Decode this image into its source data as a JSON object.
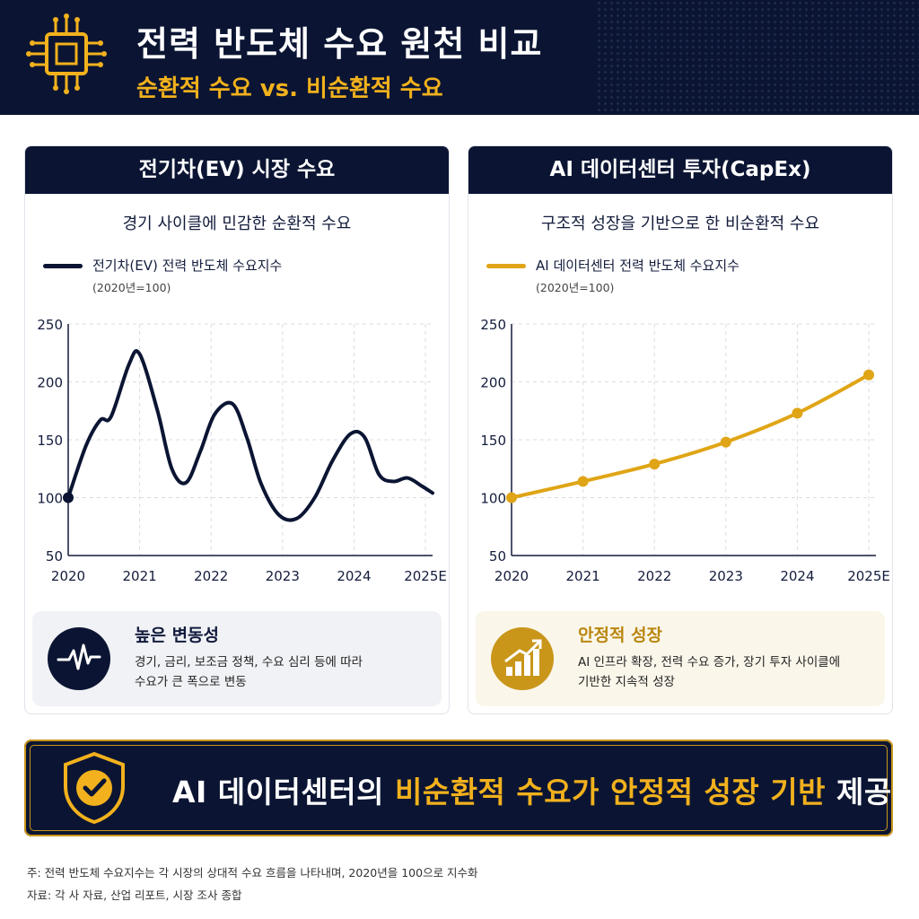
{
  "header": {
    "title": "전력 반도체 수요 원천 비교",
    "subtitle": "순환적 수요 vs. 비순환적 수요"
  },
  "colors": {
    "navy": "#0b1533",
    "gold": "#f2b11d",
    "line_gold": "#e0a516"
  },
  "left_panel": {
    "title": "전기차(EV) 시장 수요",
    "subtitle": "경기 사이클에 민감한 순환적 수요",
    "legend_label": "전기차(EV) 전력 반도체 수요지수",
    "legend_note": "(2020년=100)",
    "box_title": "높은 변동성",
    "box_desc_1": "경기, 금리, 보조금 정책, 수요 심리 등에 따라",
    "box_desc_2": "수요가 큰 폭으로 변동",
    "box_icon": "pulse-icon"
  },
  "right_panel": {
    "title": "AI 데이터센터 투자(CapEx)",
    "subtitle": "구조적 성장을 기반으로 한 비순환적 수요",
    "legend_label": "AI 데이터센터 전력 반도체 수요지수",
    "legend_note": "(2020년=100)",
    "box_title": "안정적 성장",
    "box_desc_1": "AI 인프라 확장, 전력 수요 증가, 장기 투자 사이클에",
    "box_desc_2": "기반한 지속적 성장",
    "box_icon": "growth-chart-icon"
  },
  "banner": {
    "part1": "AI 데이터센터의 ",
    "part2": "비순환적 수요가",
    "part3": " ",
    "part4": "안정적 성장 기반",
    "part5": " 제공",
    "icon": "shield-check-icon"
  },
  "footnotes": {
    "line1": "주: 전력 반도체 수요지수는 각 시장의 상대적 수요 흐름을 나타내며, 2020년을 100으로 지수화",
    "line2": "자료: 각 사 자료, 산업 리포트, 시장 조사 종합"
  },
  "chart_data": [
    {
      "type": "line",
      "ylim": [
        50,
        250
      ],
      "xlim": [
        2020,
        2025.1
      ],
      "yticks": [
        50,
        100,
        150,
        200,
        250
      ],
      "xticks": [
        "2020",
        "2021",
        "2022",
        "2023",
        "2024",
        "2025E"
      ],
      "grid": true,
      "legend_position": "top-left",
      "series": [
        {
          "name": "전기차(EV) 전력 반도체 수요지수",
          "color": "#0b1533",
          "x": [
            2020.0,
            2020.25,
            2020.45,
            2020.6,
            2020.85,
            2021.0,
            2021.25,
            2021.45,
            2021.65,
            2021.85,
            2022.05,
            2022.3,
            2022.5,
            2022.7,
            2022.95,
            2023.2,
            2023.45,
            2023.7,
            2023.95,
            2024.15,
            2024.35,
            2024.55,
            2024.75,
            2024.95,
            2025.1
          ],
          "y": [
            100,
            145,
            167,
            170,
            215,
            224,
            175,
            125,
            113,
            140,
            172,
            181,
            152,
            112,
            85,
            82,
            100,
            132,
            155,
            152,
            120,
            114,
            117,
            110,
            104
          ]
        }
      ]
    },
    {
      "type": "line",
      "ylim": [
        50,
        250
      ],
      "xlim": [
        2020,
        2025.1
      ],
      "yticks": [
        50,
        100,
        150,
        200,
        250
      ],
      "xticks": [
        "2020",
        "2021",
        "2022",
        "2023",
        "2024",
        "2025E"
      ],
      "grid": true,
      "legend_position": "top-left",
      "series": [
        {
          "name": "AI 데이터센터 전력 반도체 수요지수",
          "color": "#e0a516",
          "x": [
            2020,
            2021,
            2022,
            2023,
            2024,
            2025
          ],
          "y": [
            100,
            114,
            129,
            148,
            173,
            206
          ],
          "markers": true
        }
      ]
    }
  ]
}
